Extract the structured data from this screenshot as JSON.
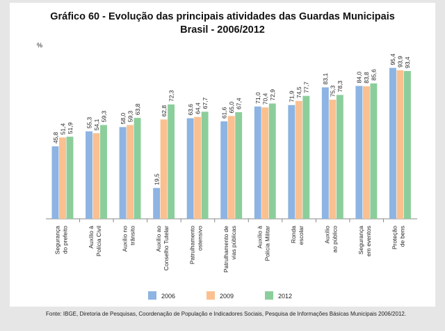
{
  "title": "Gráfico 60 - Evolução das principais atividades das Guardas Municipais",
  "subtitle": "Brasil - 2006/2012",
  "source": "Fonte: IBGE, Diretoria de Pesquisas, Coordenação de População e Indicadores Sociais, Pesquisa de Informações Básicas Municipais 2006/2012.",
  "chart_data": {
    "type": "bar",
    "title": "Gráfico 60 - Evolução das principais atividades das Guardas Municipais",
    "subtitle": "Brasil - 2006/2012",
    "ylabel": "%",
    "xlabel": "",
    "ylim": [
      0,
      100
    ],
    "grid": false,
    "legend": "bottom",
    "categories": [
      [
        "Segurança",
        "do prefeito"
      ],
      [
        "Auxílio à",
        "Polícia Civil"
      ],
      [
        "Auxílio no",
        "trânsito"
      ],
      [
        "Auxílio ao",
        "Conselho Tutelar"
      ],
      [
        "Patrulhamento",
        "ostensivo"
      ],
      [
        "Patrulhamento de",
        "vias públicas"
      ],
      [
        "Auxílio à",
        "Polícia Militar"
      ],
      [
        "Ronda",
        "escolar"
      ],
      [
        "Auxílio",
        "ao público"
      ],
      [
        "Segurança",
        "em eventos"
      ],
      [
        "Proteção",
        "de bens"
      ]
    ],
    "series": [
      {
        "name": "2006",
        "color": "#8db4e2",
        "values": [
          45.8,
          55.3,
          58.0,
          19.5,
          63.6,
          61.6,
          71.0,
          71.9,
          83.1,
          84.0,
          95.4
        ],
        "labels": [
          "45,8",
          "55,3",
          "58,0",
          "19,5",
          "63,6",
          "61,6",
          "71,0",
          "71,9",
          "83,1",
          "84,0",
          "95,4"
        ]
      },
      {
        "name": "2009",
        "color": "#fac090",
        "values": [
          51.4,
          54.1,
          59.3,
          62.8,
          64.4,
          65.0,
          70.4,
          74.5,
          75.3,
          83.8,
          93.9
        ],
        "labels": [
          "51,4",
          "54,1",
          "59,3",
          "62,8",
          "64,4",
          "65,0",
          "70,4",
          "74,5",
          "75,3",
          "83,8",
          "93,9"
        ]
      },
      {
        "name": "2012",
        "color": "#8cce9b",
        "values": [
          51.9,
          59.3,
          63.8,
          72.3,
          67.7,
          67.4,
          72.9,
          77.7,
          78.3,
          85.6,
          93.4
        ],
        "labels": [
          "51,9",
          "59,3",
          "63,8",
          "72,3",
          "67,7",
          "67,4",
          "72,9",
          "77,7",
          "78,3",
          "85,6",
          "93,4"
        ]
      }
    ]
  }
}
